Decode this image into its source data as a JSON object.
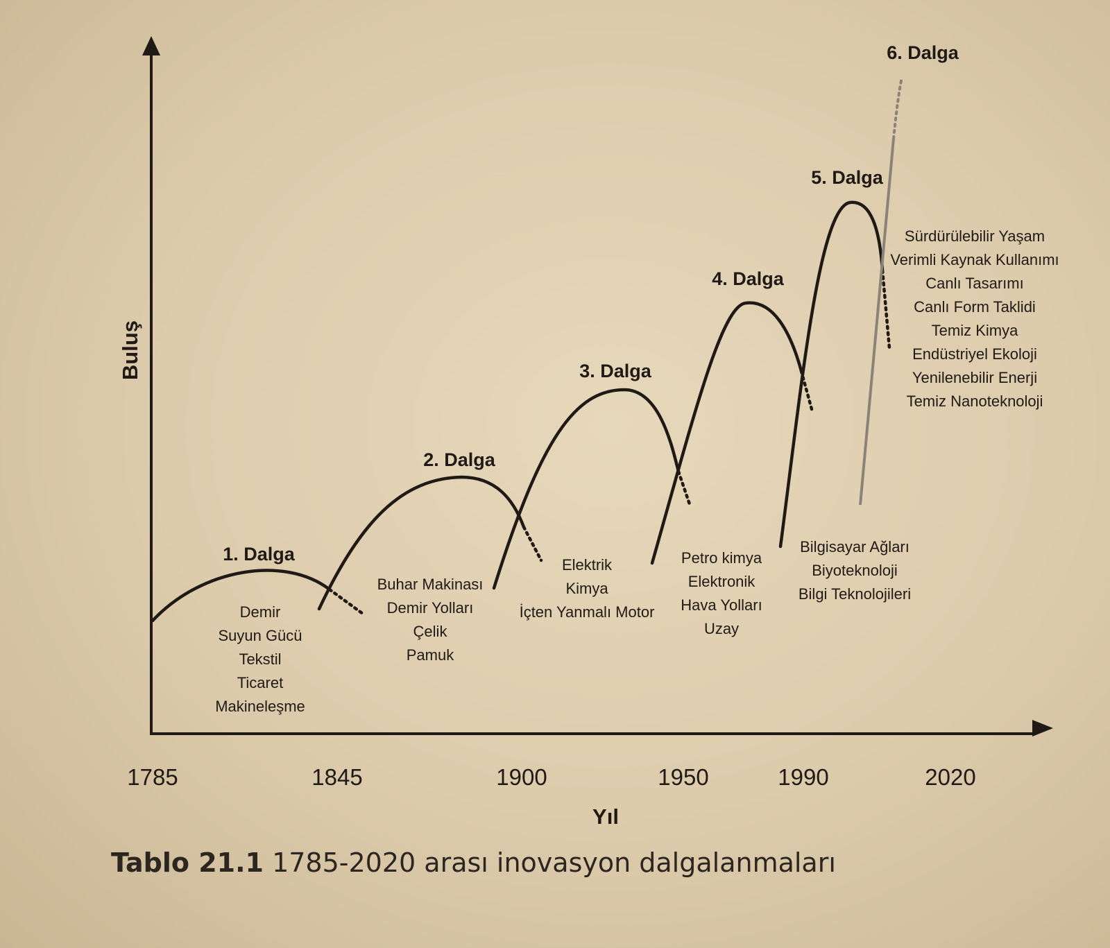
{
  "chart_data": {
    "type": "line",
    "xlabel": "Yıl",
    "ylabel": "Buluş",
    "x_ticks": [
      "1785",
      "1845",
      "1900",
      "1950",
      "1990",
      "2020"
    ],
    "grid": false,
    "waves": [
      {
        "name": "1. Dalga",
        "start": 1785,
        "peak": 1815,
        "end": 1845,
        "items": [
          "Demir",
          "Suyun Gücü",
          "Tekstil",
          "Ticaret",
          "Makineleşme"
        ]
      },
      {
        "name": "2. Dalga",
        "start": 1840,
        "peak": 1875,
        "end": 1905,
        "items": [
          "Buhar Makinası",
          "Demir Yolları",
          "Çelik",
          "Pamuk"
        ]
      },
      {
        "name": "3. Dalga",
        "start": 1895,
        "peak": 1930,
        "end": 1955,
        "items": [
          "Elektrik",
          "Kimya",
          "İçten Yanmalı Motor"
        ]
      },
      {
        "name": "4. Dalga",
        "start": 1945,
        "peak": 1970,
        "end": 1990,
        "items": [
          "Petro kimya",
          "Elektronik",
          "Hava Yolları",
          "Uzay"
        ]
      },
      {
        "name": "5. Dalga",
        "start": 1985,
        "peak": 2000,
        "end": 2010,
        "items": [
          "Bilgisayar Ağları",
          "Biyoteknoloji",
          "Bilgi Teknolojileri"
        ]
      },
      {
        "name": "6. Dalga",
        "start": 2005,
        "peak": null,
        "end": null,
        "items": [
          "Sürdürülebilir Yaşam",
          "Verimli Kaynak Kullanımı",
          "Canlı Tasarımı",
          "Canlı Form Taklidi",
          "Temiz Kimya",
          "Endüstriyel Ekoloji",
          "Yenilenebilir Enerji",
          "Temiz Nanoteknoloji"
        ]
      }
    ]
  },
  "caption": {
    "prefix": "Tablo 21.1",
    "text": "1785-2020 arası inovasyon dalgalanmaları"
  }
}
